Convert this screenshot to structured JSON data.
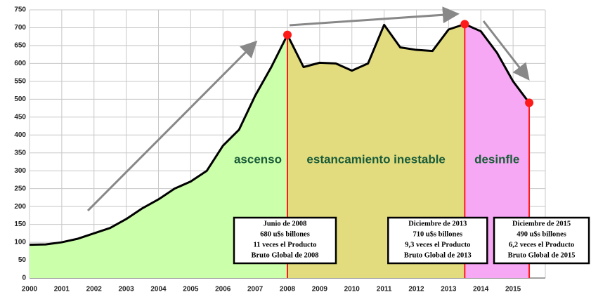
{
  "chart_data": {
    "type": "area",
    "x": [
      2000,
      2000.5,
      2001,
      2001.5,
      2002,
      2002.5,
      2003,
      2003.5,
      2004,
      2004.5,
      2005,
      2005.5,
      2006,
      2006.5,
      2007,
      2007.5,
      2008,
      2008.5,
      2009,
      2009.5,
      2010,
      2010.5,
      2011,
      2011.5,
      2012,
      2012.5,
      2013,
      2013.5,
      2014,
      2014.5,
      2015,
      2015.5
    ],
    "values": [
      93,
      94,
      100,
      110,
      125,
      140,
      165,
      195,
      220,
      250,
      270,
      300,
      370,
      415,
      510,
      590,
      680,
      590,
      602,
      600,
      580,
      600,
      708,
      645,
      638,
      635,
      695,
      710,
      690,
      630,
      550,
      490
    ],
    "color": "#000000",
    "xlim": [
      2000,
      2016
    ],
    "ylim": [
      0,
      750
    ],
    "xticks": [
      2000,
      2001,
      2002,
      2003,
      2004,
      2005,
      2006,
      2007,
      2008,
      2009,
      2010,
      2011,
      2012,
      2013,
      2014,
      2015
    ],
    "yticks": [
      0,
      50,
      100,
      150,
      200,
      250,
      300,
      350,
      400,
      450,
      500,
      550,
      600,
      650,
      700,
      750
    ],
    "grid": true,
    "regions": [
      {
        "label": "ascenso",
        "start": 2000,
        "end": 2008,
        "color": "#ccffaa"
      },
      {
        "label": "estancamiento inestable",
        "start": 2008,
        "end": 2013.5,
        "color": "#e2dc7e"
      },
      {
        "label": "desinfle",
        "start": 2013.5,
        "end": 2015.5,
        "color": "#f7a8f4"
      }
    ],
    "annotations": [
      {
        "x": 2008,
        "y": 680,
        "lines": [
          "Junio de 2008",
          "680 u$s billones",
          "11 veces el Producto",
          "Bruto Global de 2008"
        ]
      },
      {
        "x": 2013.5,
        "y": 710,
        "lines": [
          "Diciembre de 2013",
          "710 u$s billones",
          "9,3 veces el Producto",
          "Bruto Global de 2013"
        ]
      },
      {
        "x": 2015.5,
        "y": 490,
        "lines": [
          "Diciembre de 2015",
          "490 u$s billones",
          "6,2 veces el Producto",
          "Bruto Global de 2015"
        ]
      }
    ]
  }
}
